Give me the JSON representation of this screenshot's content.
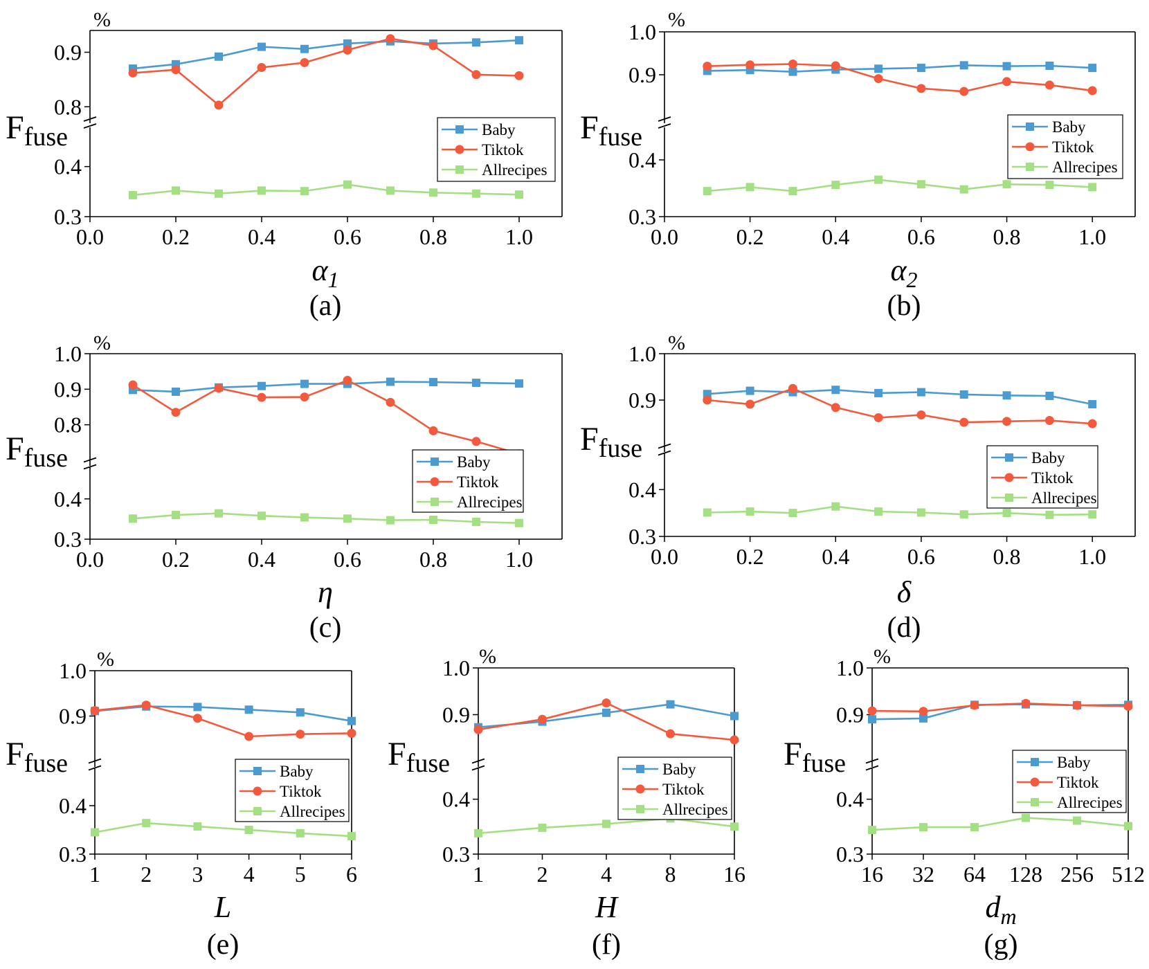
{
  "figure": {
    "series_names": [
      "Baby",
      "Tiktok",
      "Allrecipes"
    ]
  },
  "colors": {
    "Baby": "#4c9bd0",
    "Tiktok": "#f15a3c",
    "Allrecipes": "#a4df84"
  },
  "chart_data": [
    {
      "id": "a",
      "type": "line",
      "caption": "(a)",
      "xlabel_main": "α",
      "xlabel_sub": "1",
      "ylabel_main": "F",
      "ylabel_sub": "fuse",
      "unit": "%",
      "x": [
        0.1,
        0.2,
        0.3,
        0.4,
        0.5,
        0.6,
        0.7,
        0.8,
        0.9,
        1.0
      ],
      "xticks": [
        "0.0",
        "0.2",
        "0.4",
        "0.6",
        "0.8",
        "1.0"
      ],
      "upper_yticks": [
        "0.8",
        "0.9"
      ],
      "lower_yticks": [
        "0.3",
        "0.4"
      ],
      "upper_ylim": [
        0.78,
        0.94
      ],
      "lower_ylim": [
        0.3,
        0.47
      ],
      "series": [
        {
          "name": "Baby",
          "values": [
            0.87,
            0.878,
            0.892,
            0.91,
            0.906,
            0.916,
            0.92,
            0.916,
            0.918,
            0.922
          ]
        },
        {
          "name": "Tiktok",
          "values": [
            0.862,
            0.868,
            0.803,
            0.872,
            0.881,
            0.904,
            0.925,
            0.912,
            0.859,
            0.857
          ]
        },
        {
          "name": "Allrecipes",
          "values": [
            0.343,
            0.352,
            0.346,
            0.352,
            0.351,
            0.364,
            0.352,
            0.348,
            0.346,
            0.344
          ]
        }
      ]
    },
    {
      "id": "b",
      "type": "line",
      "caption": "(b)",
      "xlabel_main": "α",
      "xlabel_sub": "2",
      "ylabel_main": "F",
      "ylabel_sub": "fuse",
      "unit": "%",
      "x": [
        0.1,
        0.2,
        0.3,
        0.4,
        0.5,
        0.6,
        0.7,
        0.8,
        0.9,
        1.0
      ],
      "xticks": [
        "0.0",
        "0.2",
        "0.4",
        "0.6",
        "0.8",
        "1.0"
      ],
      "upper_yticks": [
        "0.9",
        "1.0"
      ],
      "lower_yticks": [
        "0.3",
        "0.4"
      ],
      "upper_ylim": [
        0.8,
        1.0
      ],
      "lower_ylim": [
        0.3,
        0.45
      ],
      "series": [
        {
          "name": "Baby",
          "values": [
            0.909,
            0.911,
            0.907,
            0.912,
            0.914,
            0.916,
            0.922,
            0.92,
            0.921,
            0.916
          ]
        },
        {
          "name": "Tiktok",
          "values": [
            0.92,
            0.923,
            0.925,
            0.921,
            0.891,
            0.868,
            0.861,
            0.884,
            0.876,
            0.863
          ]
        },
        {
          "name": "Allrecipes",
          "values": [
            0.345,
            0.352,
            0.345,
            0.356,
            0.365,
            0.357,
            0.348,
            0.357,
            0.356,
            0.352
          ]
        }
      ]
    },
    {
      "id": "c",
      "type": "line",
      "caption": "(c)",
      "xlabel_main": "η",
      "xlabel_sub": "",
      "ylabel_main": "F",
      "ylabel_sub": "fuse",
      "unit": "%",
      "x": [
        0.1,
        0.2,
        0.3,
        0.4,
        0.5,
        0.6,
        0.7,
        0.8,
        0.9,
        1.0
      ],
      "xticks": [
        "0.0",
        "0.2",
        "0.4",
        "0.6",
        "0.8",
        "1.0"
      ],
      "upper_yticks": [
        "0.8",
        "0.9",
        "1.0"
      ],
      "lower_yticks": [
        "0.3",
        "0.4"
      ],
      "upper_ylim": [
        0.7,
        1.0
      ],
      "lower_ylim": [
        0.3,
        0.47
      ],
      "series": [
        {
          "name": "Baby",
          "values": [
            0.898,
            0.893,
            0.905,
            0.909,
            0.915,
            0.915,
            0.921,
            0.92,
            0.918,
            0.916
          ]
        },
        {
          "name": "Tiktok",
          "values": [
            0.912,
            0.835,
            0.903,
            0.877,
            0.878,
            0.925,
            0.863,
            0.783,
            0.753,
            0.718
          ]
        },
        {
          "name": "Allrecipes",
          "values": [
            0.351,
            0.36,
            0.364,
            0.358,
            0.354,
            0.351,
            0.347,
            0.348,
            0.343,
            0.34
          ]
        }
      ]
    },
    {
      "id": "d",
      "type": "line",
      "caption": "(d)",
      "xlabel_main": "δ",
      "xlabel_sub": "",
      "ylabel_main": "F",
      "ylabel_sub": "fuse",
      "unit": "%",
      "x": [
        0.1,
        0.2,
        0.3,
        0.4,
        0.5,
        0.6,
        0.7,
        0.8,
        0.9,
        1.0
      ],
      "xticks": [
        "0.0",
        "0.2",
        "0.4",
        "0.6",
        "0.8",
        "1.0"
      ],
      "upper_yticks": [
        "0.9",
        "1.0"
      ],
      "lower_yticks": [
        "0.3",
        "0.4"
      ],
      "upper_ylim": [
        0.8,
        1.0
      ],
      "lower_ylim": [
        0.3,
        0.47
      ],
      "series": [
        {
          "name": "Baby",
          "values": [
            0.913,
            0.92,
            0.917,
            0.922,
            0.915,
            0.917,
            0.912,
            0.91,
            0.909,
            0.891
          ]
        },
        {
          "name": "Tiktok",
          "values": [
            0.9,
            0.891,
            0.925,
            0.884,
            0.862,
            0.868,
            0.852,
            0.854,
            0.856,
            0.849
          ]
        },
        {
          "name": "Allrecipes",
          "values": [
            0.351,
            0.353,
            0.35,
            0.364,
            0.353,
            0.351,
            0.347,
            0.35,
            0.346,
            0.347
          ]
        }
      ]
    },
    {
      "id": "e",
      "type": "line",
      "caption": "(e)",
      "xlabel_main": "L",
      "xlabel_sub": "",
      "ylabel_main": "F",
      "ylabel_sub": "fuse",
      "unit": "%",
      "x": [
        "1",
        "2",
        "3",
        "4",
        "5",
        "6"
      ],
      "xticks": [
        "1",
        "2",
        "3",
        "4",
        "5",
        "6"
      ],
      "upper_yticks": [
        "0.9",
        "1.0"
      ],
      "lower_yticks": [
        "0.3",
        "0.4"
      ],
      "upper_ylim": [
        0.8,
        1.0
      ],
      "lower_ylim": [
        0.3,
        0.47
      ],
      "series": [
        {
          "name": "Baby",
          "values": [
            0.911,
            0.921,
            0.92,
            0.914,
            0.908,
            0.889
          ]
        },
        {
          "name": "Tiktok",
          "values": [
            0.912,
            0.924,
            0.895,
            0.855,
            0.86,
            0.862
          ]
        },
        {
          "name": "Allrecipes",
          "values": [
            0.345,
            0.364,
            0.357,
            0.35,
            0.343,
            0.337
          ]
        }
      ]
    },
    {
      "id": "f",
      "type": "line",
      "caption": "(f)",
      "xlabel_main": "H",
      "xlabel_sub": "",
      "ylabel_main": "F",
      "ylabel_sub": "fuse",
      "unit": "%",
      "x": [
        "1",
        "2",
        "4",
        "8",
        "16"
      ],
      "xticks": [
        "1",
        "2",
        "4",
        "8",
        "16"
      ],
      "upper_yticks": [
        "0.9",
        "1.0"
      ],
      "lower_yticks": [
        "0.3",
        "0.4"
      ],
      "upper_ylim": [
        0.8,
        1.0
      ],
      "lower_ylim": [
        0.3,
        0.45
      ],
      "series": [
        {
          "name": "Baby",
          "values": [
            0.873,
            0.885,
            0.904,
            0.922,
            0.897
          ]
        },
        {
          "name": "Tiktok",
          "values": [
            0.868,
            0.89,
            0.925,
            0.859,
            0.846
          ]
        },
        {
          "name": "Allrecipes",
          "values": [
            0.338,
            0.348,
            0.355,
            0.365,
            0.35
          ]
        }
      ]
    },
    {
      "id": "g",
      "type": "line",
      "caption": "(g)",
      "xlabel_main": "d",
      "xlabel_sub": "m",
      "ylabel_main": "F",
      "ylabel_sub": "fuse",
      "unit": "%",
      "x": [
        "16",
        "32",
        "64",
        "128",
        "256",
        "512"
      ],
      "xticks": [
        "16",
        "32",
        "64",
        "128",
        "256",
        "512"
      ],
      "upper_yticks": [
        "0.9",
        "1.0"
      ],
      "lower_yticks": [
        "0.3",
        "0.4"
      ],
      "upper_ylim": [
        0.8,
        1.0
      ],
      "lower_ylim": [
        0.3,
        0.45
      ],
      "series": [
        {
          "name": "Baby",
          "values": [
            0.89,
            0.892,
            0.921,
            0.922,
            0.92,
            0.921
          ]
        },
        {
          "name": "Tiktok",
          "values": [
            0.908,
            0.907,
            0.92,
            0.924,
            0.92,
            0.918
          ]
        },
        {
          "name": "Allrecipes",
          "values": [
            0.344,
            0.349,
            0.349,
            0.366,
            0.361,
            0.351
          ]
        }
      ]
    }
  ]
}
